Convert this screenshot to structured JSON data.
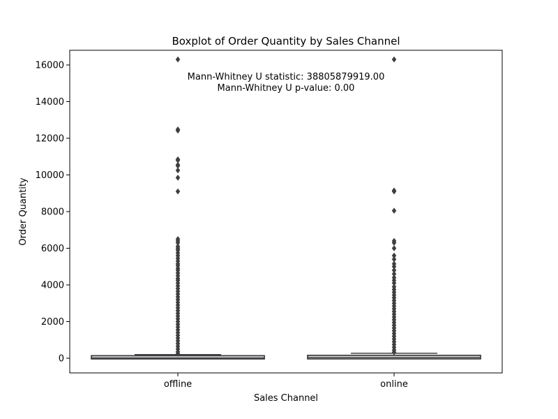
{
  "chart_data": {
    "type": "box",
    "title": "Boxplot of Order Quantity by Sales Channel",
    "xlabel": "Sales Channel",
    "ylabel": "Order Quantity",
    "ylim": [
      -800,
      16800
    ],
    "yticks": [
      0,
      2000,
      4000,
      6000,
      8000,
      10000,
      12000,
      14000,
      16000
    ],
    "grid": false,
    "annotations": [
      "Mann-Whitney U statistic: 38805879919.00",
      "Mann-Whitney U p-value: 0.00"
    ],
    "categories": [
      "offline",
      "online"
    ],
    "boxes": [
      {
        "category": "offline",
        "whisker_low": 0,
        "q1": 2,
        "median": 20,
        "q3": 100,
        "whisker_high": 200,
        "outliers": [
          16300,
          12480,
          12420,
          10850,
          10800,
          10550,
          10500,
          10250,
          9850,
          9100,
          6500,
          6400,
          6300,
          6100,
          6000,
          5900,
          5750,
          5600,
          5450,
          5300,
          5150,
          5050,
          4900,
          4800,
          4650,
          4500,
          4350,
          4250,
          4100,
          3950,
          3800,
          3650,
          3500,
          3350,
          3200,
          3050,
          2900,
          2750,
          2600,
          2450,
          2300,
          2150,
          2000,
          1850,
          1700,
          1550,
          1400,
          1250,
          1100,
          950,
          800,
          650,
          500,
          350,
          250
        ]
      },
      {
        "category": "online",
        "whisker_low": 0,
        "q1": 5,
        "median": 50,
        "q3": 120,
        "whisker_high": 270,
        "outliers": [
          16300,
          9150,
          9100,
          8050,
          6400,
          6300,
          6000,
          5600,
          5400,
          5150,
          5000,
          4800,
          4600,
          4400,
          4250,
          4100,
          3900,
          3750,
          3600,
          3450,
          3300,
          3150,
          3000,
          2850,
          2700,
          2550,
          2400,
          2250,
          2100,
          1950,
          1800,
          1650,
          1500,
          1350,
          1200,
          1050,
          900,
          750,
          600,
          450,
          330
        ]
      }
    ],
    "colors": {
      "box_fill": "#eaeaf2",
      "line": "#3f3f3f",
      "axis": "#000000"
    }
  }
}
